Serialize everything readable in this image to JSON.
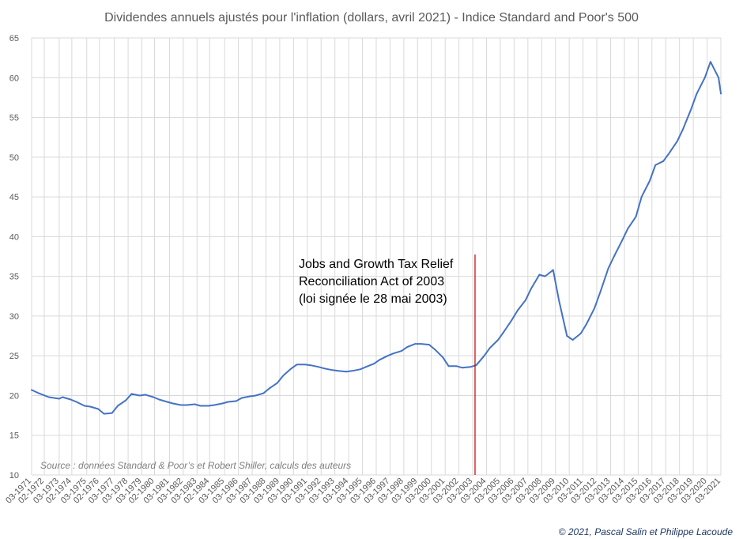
{
  "chart_data": {
    "type": "line",
    "title": "Dividendes annuels ajustés pour l'inflation (dollars, avril 2021) - Indice Standard and Poor's 500",
    "xlabel": "",
    "ylabel": "",
    "ylim": [
      10,
      65
    ],
    "y_ticks": [
      "10",
      "15",
      "20",
      "25",
      "30",
      "35",
      "40",
      "45",
      "50",
      "55",
      "60",
      "65"
    ],
    "x_range": [
      "1971-03",
      "2021-03"
    ],
    "x_tick_labels": [
      "03-1971",
      "02-1972",
      "03-1973",
      "02-1974",
      "03-1975",
      "02-1976",
      "03-1977",
      "03-1978",
      "03-1979",
      "02-1980",
      "03-1981",
      "03-1982",
      "03-1983",
      "02-1984",
      "03-1985",
      "03-1986",
      "03-1987",
      "03-1988",
      "03-1989",
      "03-1990",
      "03-1991",
      "03-1992",
      "03-1993",
      "03-1994",
      "03-1995",
      "03-1996",
      "03-1997",
      "03-1998",
      "03-1999",
      "03-2000",
      "03-2001",
      "03-2002",
      "03-2003",
      "03-2004",
      "03-2005",
      "03-2006",
      "03-2007",
      "03-2008",
      "03-2009",
      "03-2010",
      "03-2011",
      "03-2012",
      "03-2013",
      "03-2014",
      "03-2015",
      "03-2016",
      "03-2017",
      "03-2018",
      "03-2019",
      "03-2020",
      "03-2021"
    ],
    "grid": true,
    "series": [
      {
        "color": "#4472c4",
        "x": [
          "1971-03",
          "1971-09",
          "1972-06",
          "1973-03",
          "1973-06",
          "1974-01",
          "1974-06",
          "1975-01",
          "1975-06",
          "1976-01",
          "1976-06",
          "1977-01",
          "1977-06",
          "1978-01",
          "1978-06",
          "1979-01",
          "1979-06",
          "1980-01",
          "1980-06",
          "1981-01",
          "1981-06",
          "1982-01",
          "1982-06",
          "1983-01",
          "1983-06",
          "1984-01",
          "1984-06",
          "1985-01",
          "1985-06",
          "1986-01",
          "1986-06",
          "1987-01",
          "1987-06",
          "1988-01",
          "1988-06",
          "1989-01",
          "1989-06",
          "1990-01",
          "1990-06",
          "1991-01",
          "1991-06",
          "1992-01",
          "1992-06",
          "1993-01",
          "1993-06",
          "1994-01",
          "1994-06",
          "1995-01",
          "1995-06",
          "1996-01",
          "1996-06",
          "1997-01",
          "1997-06",
          "1998-01",
          "1998-06",
          "1999-01",
          "1999-06",
          "2000-01",
          "2000-06",
          "2001-01",
          "2001-06",
          "2002-01",
          "2002-06",
          "2003-01",
          "2003-06",
          "2004-01",
          "2004-06",
          "2005-01",
          "2005-06",
          "2006-01",
          "2006-06",
          "2007-01",
          "2007-06",
          "2008-01",
          "2008-06",
          "2009-01",
          "2009-06",
          "2010-01",
          "2010-06",
          "2011-01",
          "2011-06",
          "2012-01",
          "2012-06",
          "2013-01",
          "2013-06",
          "2014-01",
          "2014-06",
          "2015-01",
          "2015-06",
          "2016-01",
          "2016-06",
          "2017-01",
          "2017-06",
          "2018-01",
          "2018-06",
          "2019-01",
          "2019-06",
          "2020-01",
          "2020-06",
          "2021-01",
          "2021-03"
        ],
        "values": [
          20.7,
          20.3,
          19.8,
          19.6,
          19.8,
          19.5,
          19.2,
          18.7,
          18.6,
          18.3,
          17.7,
          17.8,
          18.7,
          19.4,
          20.2,
          20.0,
          20.1,
          19.8,
          19.5,
          19.2,
          19.0,
          18.8,
          18.8,
          18.9,
          18.7,
          18.7,
          18.8,
          19.0,
          19.2,
          19.3,
          19.7,
          19.9,
          20.0,
          20.3,
          20.9,
          21.6,
          22.5,
          23.4,
          23.9,
          23.9,
          23.8,
          23.6,
          23.4,
          23.2,
          23.1,
          23.0,
          23.1,
          23.3,
          23.6,
          24.0,
          24.5,
          25.0,
          25.3,
          25.6,
          26.1,
          26.5,
          26.5,
          26.4,
          25.8,
          24.8,
          23.7,
          23.7,
          23.5,
          23.6,
          23.8,
          25.0,
          26.0,
          27.0,
          28.0,
          29.5,
          30.7,
          32.0,
          33.5,
          35.2,
          35.0,
          35.8,
          32.0,
          27.5,
          27.0,
          27.8,
          29.0,
          31.0,
          33.0,
          36.0,
          37.5,
          39.5,
          41.0,
          42.5,
          45.0,
          47.0,
          49.0,
          49.5,
          50.5,
          52.0,
          53.5,
          56.0,
          58.0,
          60.0,
          62.0,
          60.0,
          58.0
        ]
      }
    ],
    "annotations": [
      {
        "x": "2003-05",
        "lines": [
          "Jobs and Growth Tax Relief",
          "Reconciliation Act of 2003",
          "(loi signée le 28 mai 2003)"
        ],
        "line_color": "#c00000"
      }
    ]
  },
  "source_note": "Source : données Standard & Poor’s et Robert Shiller, calculs des auteurs",
  "copyright": "© 2021, Pascal Salin et Philippe Lacoude"
}
